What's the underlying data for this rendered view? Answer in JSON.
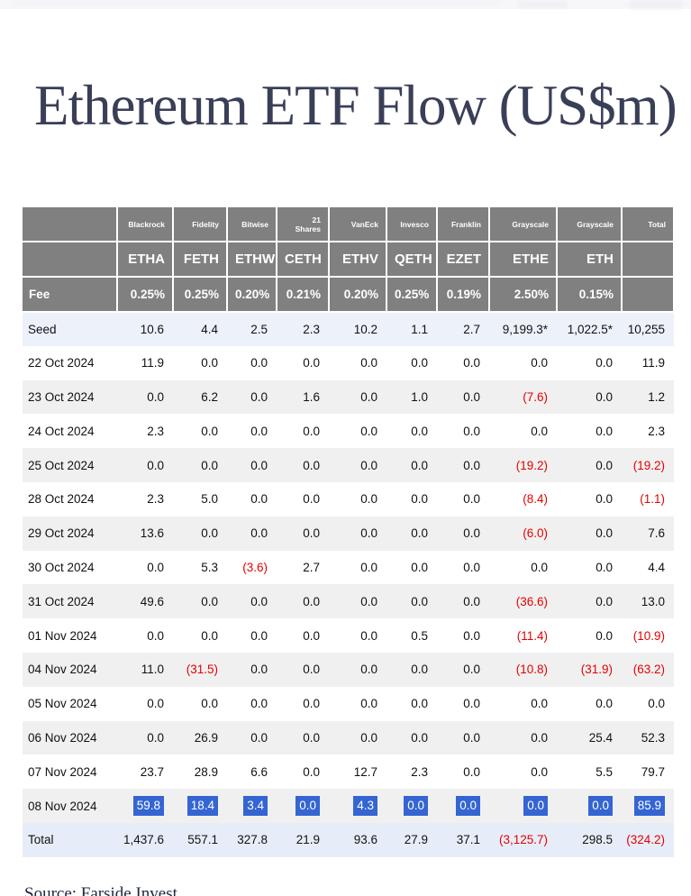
{
  "title": "Ethereum ETF Flow (US$m)",
  "footer": {
    "source": "Source: Farside Invest"
  },
  "colors": {
    "header_bg": "#808080",
    "seed_row_bg": "#edf1fa",
    "grand_total_row_bg": "#e7edf8",
    "stripe_bg": "#f0f0f0",
    "negative_text": "#e60000",
    "selection_highlight": "#3465d2",
    "title_color": "#3a3f58"
  },
  "table": {
    "fee_label": "Fee",
    "total_header": "Total",
    "columns": [
      {
        "issuer": "Blackrock",
        "ticker": "ETHA",
        "fee": "0.25%"
      },
      {
        "issuer": "Fidelity",
        "ticker": "FETH",
        "fee": "0.25%"
      },
      {
        "issuer": "Bitwise",
        "ticker": "ETHW",
        "fee": "0.20%"
      },
      {
        "issuer": "21 Shares",
        "ticker": "CETH",
        "fee": "0.21%"
      },
      {
        "issuer": "VanEck",
        "ticker": "ETHV",
        "fee": "0.20%"
      },
      {
        "issuer": "Invesco",
        "ticker": "QETH",
        "fee": "0.25%"
      },
      {
        "issuer": "Franklin",
        "ticker": "EZET",
        "fee": "0.19%"
      },
      {
        "issuer": "Grayscale",
        "ticker": "ETHE",
        "fee": "2.50%"
      },
      {
        "issuer": "Grayscale",
        "ticker": "ETH",
        "fee": "0.15%"
      }
    ],
    "rows": [
      {
        "label": "Seed",
        "values": [
          "10.6",
          "4.4",
          "2.5",
          "2.3",
          "10.2",
          "1.1",
          "2.7",
          "9,199.3*",
          "1,022.5*"
        ],
        "total": "10,255",
        "style": "seed"
      },
      {
        "label": "22 Oct 2024",
        "values": [
          "11.9",
          "0.0",
          "0.0",
          "0.0",
          "0.0",
          "0.0",
          "0.0",
          "0.0",
          "0.0"
        ],
        "total": "11.9"
      },
      {
        "label": "23 Oct 2024",
        "values": [
          "0.0",
          "6.2",
          "0.0",
          "1.6",
          "0.0",
          "1.0",
          "0.0",
          "(7.6)",
          "0.0"
        ],
        "total": "1.2"
      },
      {
        "label": "24 Oct 2024",
        "values": [
          "2.3",
          "0.0",
          "0.0",
          "0.0",
          "0.0",
          "0.0",
          "0.0",
          "0.0",
          "0.0"
        ],
        "total": "2.3"
      },
      {
        "label": "25 Oct 2024",
        "values": [
          "0.0",
          "0.0",
          "0.0",
          "0.0",
          "0.0",
          "0.0",
          "0.0",
          "(19.2)",
          "0.0"
        ],
        "total": "(19.2)"
      },
      {
        "label": "28 Oct 2024",
        "values": [
          "2.3",
          "5.0",
          "0.0",
          "0.0",
          "0.0",
          "0.0",
          "0.0",
          "(8.4)",
          "0.0"
        ],
        "total": "(1.1)"
      },
      {
        "label": "29 Oct 2024",
        "values": [
          "13.6",
          "0.0",
          "0.0",
          "0.0",
          "0.0",
          "0.0",
          "0.0",
          "(6.0)",
          "0.0"
        ],
        "total": "7.6"
      },
      {
        "label": "30 Oct 2024",
        "values": [
          "0.0",
          "5.3",
          "(3.6)",
          "2.7",
          "0.0",
          "0.0",
          "0.0",
          "0.0",
          "0.0"
        ],
        "total": "4.4"
      },
      {
        "label": "31 Oct 2024",
        "values": [
          "49.6",
          "0.0",
          "0.0",
          "0.0",
          "0.0",
          "0.0",
          "0.0",
          "(36.6)",
          "0.0"
        ],
        "total": "13.0"
      },
      {
        "label": "01 Nov 2024",
        "values": [
          "0.0",
          "0.0",
          "0.0",
          "0.0",
          "0.0",
          "0.5",
          "0.0",
          "(11.4)",
          "0.0"
        ],
        "total": "(10.9)"
      },
      {
        "label": "04 Nov 2024",
        "values": [
          "11.0",
          "(31.5)",
          "0.0",
          "0.0",
          "0.0",
          "0.0",
          "0.0",
          "(10.8)",
          "(31.9)"
        ],
        "total": "(63.2)"
      },
      {
        "label": "05 Nov 2024",
        "values": [
          "0.0",
          "0.0",
          "0.0",
          "0.0",
          "0.0",
          "0.0",
          "0.0",
          "0.0",
          "0.0"
        ],
        "total": "0.0"
      },
      {
        "label": "06 Nov 2024",
        "values": [
          "0.0",
          "26.9",
          "0.0",
          "0.0",
          "0.0",
          "0.0",
          "0.0",
          "0.0",
          "25.4"
        ],
        "total": "52.3"
      },
      {
        "label": "07 Nov 2024",
        "values": [
          "23.7",
          "28.9",
          "6.6",
          "0.0",
          "12.7",
          "2.3",
          "0.0",
          "0.0",
          "5.5"
        ],
        "total": "79.7"
      },
      {
        "label": "08 Nov 2024",
        "values": [
          "59.8",
          "18.4",
          "3.4",
          "0.0",
          "4.3",
          "0.0",
          "0.0",
          "0.0",
          "0.0"
        ],
        "total": "85.9",
        "selected": true
      },
      {
        "label": "Total",
        "values": [
          "1,437.6",
          "557.1",
          "327.8",
          "21.9",
          "93.6",
          "27.9",
          "37.1",
          "(3,125.7)",
          "298.5"
        ],
        "total": "(324.2)",
        "style": "grand"
      }
    ]
  }
}
